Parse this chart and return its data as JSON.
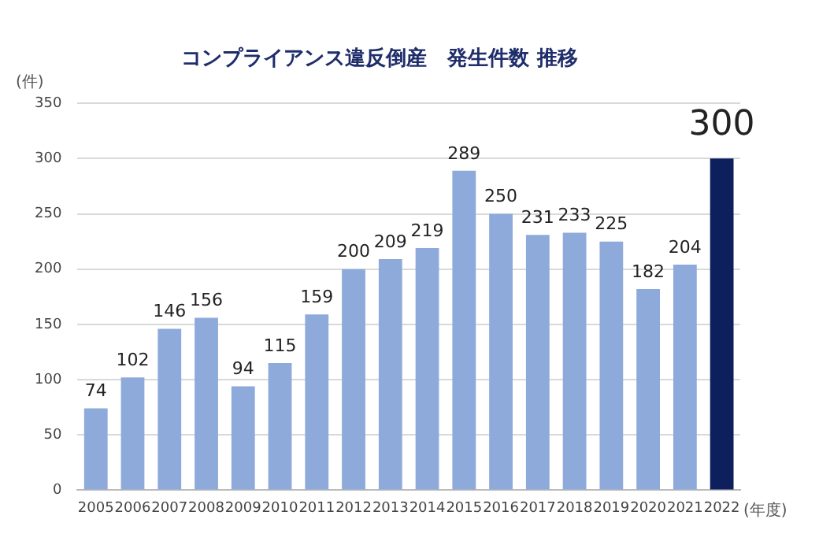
{
  "chart_data": {
    "type": "bar",
    "title": "コンプライアンス違反倒産　発生件数 推移",
    "ylabel": "(件)",
    "xlabel": "(年度)",
    "categories": [
      "2005",
      "2006",
      "2007",
      "2008",
      "2009",
      "2010",
      "2011",
      "2012",
      "2013",
      "2014",
      "2015",
      "2016",
      "2017",
      "2018",
      "2019",
      "2020",
      "2021",
      "2022"
    ],
    "values": [
      74,
      102,
      146,
      156,
      94,
      115,
      159,
      200,
      209,
      219,
      289,
      250,
      231,
      233,
      225,
      182,
      204,
      300
    ],
    "colors": [
      "#8eaadb",
      "#8eaadb",
      "#8eaadb",
      "#8eaadb",
      "#8eaadb",
      "#8eaadb",
      "#8eaadb",
      "#8eaadb",
      "#8eaadb",
      "#8eaadb",
      "#8eaadb",
      "#8eaadb",
      "#8eaadb",
      "#8eaadb",
      "#8eaadb",
      "#8eaadb",
      "#8eaadb",
      "#0d1f5c"
    ],
    "ylim": [
      0,
      350
    ],
    "yticks": [
      0,
      50,
      100,
      150,
      200,
      250,
      300,
      350
    ],
    "grid": "y",
    "data_labels": true
  }
}
